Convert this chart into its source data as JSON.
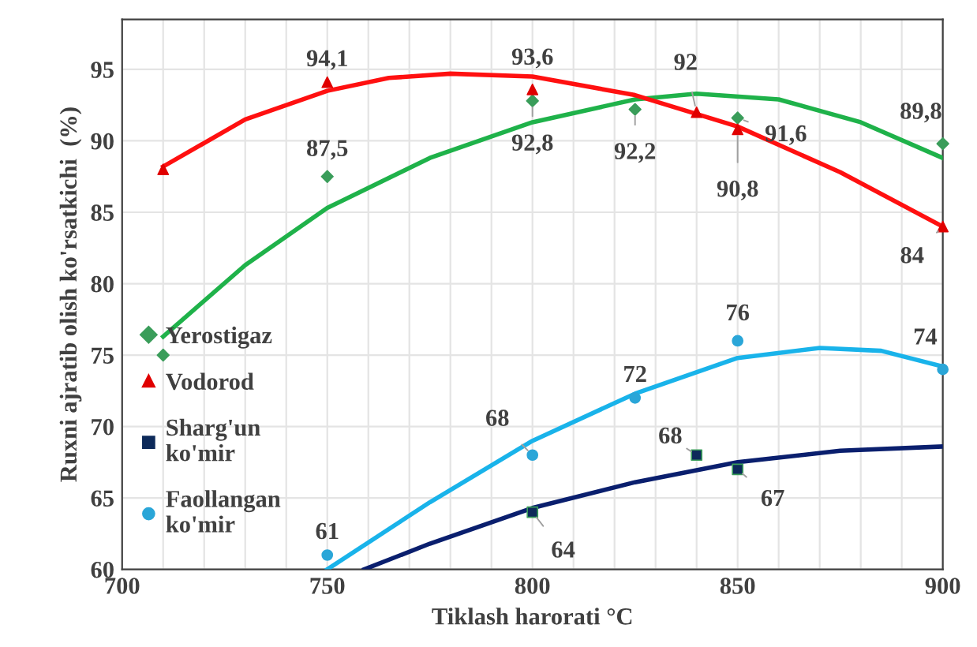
{
  "chart_data": {
    "type": "scatter",
    "xlabel": "Tiklash harorati °C",
    "ylabel": "Ruxni ajratib olish ko'rsatkichi  (%)",
    "xlim": [
      700,
      900
    ],
    "xticks": [
      700,
      {
        "value": 710,
        "label": null
      },
      {
        "value": 720,
        "label": null
      },
      {
        "value": 730,
        "label": null
      },
      {
        "value": 740,
        "label": null
      },
      750,
      {
        "value": 760,
        "label": null
      },
      {
        "value": 770,
        "label": null
      },
      {
        "value": 780,
        "label": null
      },
      {
        "value": 790,
        "label": null
      },
      800,
      {
        "value": 810,
        "label": null
      },
      {
        "value": 820,
        "label": null
      },
      {
        "value": 830,
        "label": null
      },
      {
        "value": 840,
        "label": null
      },
      850,
      {
        "value": 860,
        "label": null
      },
      {
        "value": 870,
        "label": null
      },
      {
        "value": 880,
        "label": null
      },
      {
        "value": 890,
        "label": null
      },
      900
    ],
    "ylim": [
      60,
      98.5
    ],
    "yticks": [
      60,
      65,
      70,
      75,
      80,
      85,
      90,
      95
    ],
    "grid": true,
    "legend": "left",
    "series": [
      {
        "name": "Yerostigaz",
        "marker": "diamond",
        "color": "#3a9d5a",
        "x": [
          710,
          750,
          800,
          825,
          850,
          900
        ],
        "values": [
          75,
          87.5,
          92.8,
          92.2,
          91.6,
          89.8
        ],
        "value_labels": [
          null,
          "87,5",
          "92,8",
          "92,2",
          "91,6",
          "89,8"
        ]
      },
      {
        "name": "Vodorod",
        "marker": "triangle",
        "color": "#e00000",
        "x": [
          710,
          750,
          800,
          840,
          850,
          900
        ],
        "values": [
          88,
          94.1,
          93.6,
          92,
          90.8,
          84
        ],
        "value_labels": [
          null,
          "94,1",
          "93,6",
          "92",
          "90,8",
          "84"
        ]
      },
      {
        "name": "Sharg'un\nko'mir",
        "marker": "square",
        "color": "#0d2a5a",
        "x": [
          800,
          840,
          850
        ],
        "values": [
          64,
          68,
          67
        ],
        "value_labels": [
          "64",
          "68",
          "67"
        ]
      },
      {
        "name": "Faollangan\nko'mir",
        "marker": "circle",
        "color": "#2aa6d8",
        "x": [
          750,
          800,
          825,
          850,
          900
        ],
        "values": [
          61,
          68,
          72,
          76,
          74
        ],
        "value_labels": [
          "61",
          "68",
          "72",
          "76",
          "74"
        ]
      },
      {
        "type": "line",
        "marker": "none",
        "color": "#1fb24a",
        "x": [
          710,
          730,
          750,
          775,
          800,
          825,
          840,
          860,
          880,
          900
        ],
        "values": [
          76.3,
          81.3,
          85.3,
          88.8,
          91.3,
          92.9,
          93.3,
          92.9,
          91.3,
          88.8
        ]
      },
      {
        "type": "line",
        "marker": "none",
        "color": "#ff1010",
        "x": [
          710,
          730,
          750,
          765,
          780,
          800,
          825,
          850,
          875,
          900
        ],
        "values": [
          88.2,
          91.5,
          93.5,
          94.4,
          94.7,
          94.5,
          93.2,
          91,
          87.8,
          84
        ]
      },
      {
        "type": "line",
        "marker": "none",
        "color": "#0a1f6e",
        "x": [
          759,
          775,
          800,
          825,
          850,
          875,
          900
        ],
        "values": [
          60,
          61.8,
          64.3,
          66.1,
          67.5,
          68.3,
          68.6
        ]
      },
      {
        "type": "line",
        "marker": "none",
        "color": "#19b3ea",
        "x": [
          750,
          775,
          800,
          825,
          850,
          870,
          885,
          900
        ],
        "values": [
          60,
          64.7,
          69,
          72.3,
          74.8,
          75.5,
          75.3,
          74.2
        ]
      }
    ]
  }
}
